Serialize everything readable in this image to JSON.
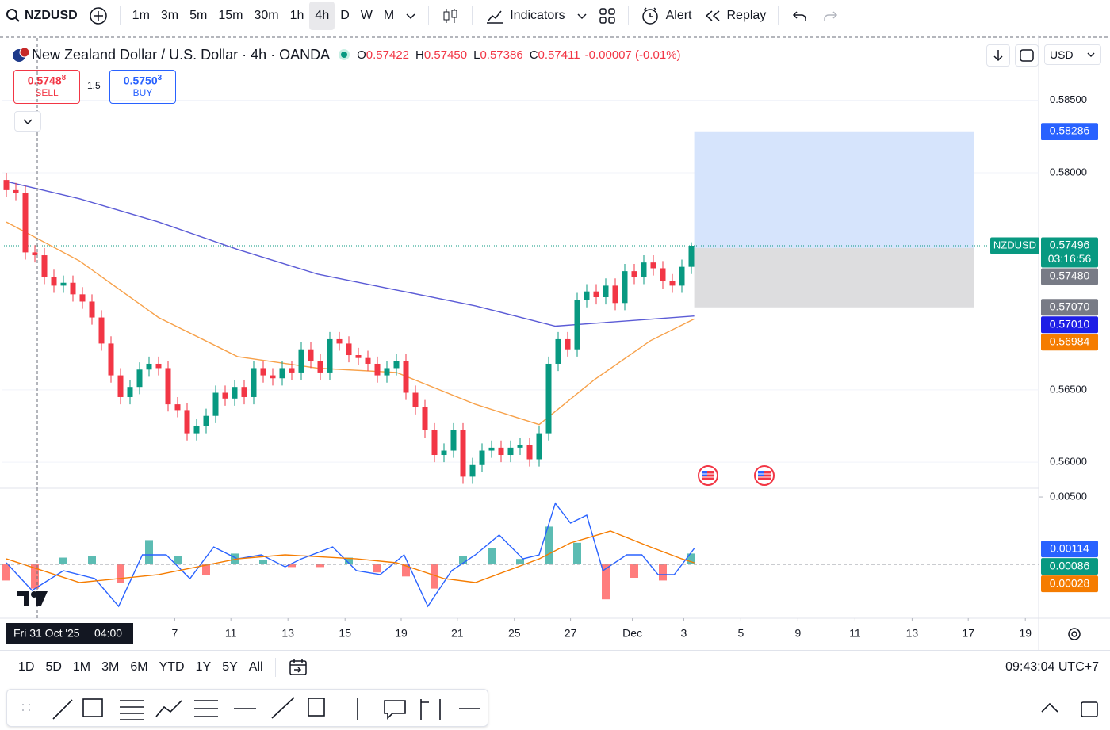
{
  "toolbar": {
    "symbol": "NZDUSD",
    "intervals": [
      "1m",
      "3m",
      "5m",
      "15m",
      "30m",
      "1h",
      "4h",
      "D",
      "W",
      "M"
    ],
    "active_interval": "4h",
    "indicators": "Indicators",
    "alert": "Alert",
    "replay": "Replay"
  },
  "legend": {
    "title": "New Zealand Dollar / U.S. Dollar · 4h · OANDA",
    "ohlc": [
      {
        "key": "O",
        "value": 0.57422
      },
      {
        "key": "H",
        "value": 0.5745,
        "label": "0.57450"
      },
      {
        "key": "L",
        "value": 0.57386
      },
      {
        "key": "C",
        "value": 0.57411
      }
    ],
    "change": "-0.00007 (-0.01%)"
  },
  "trade": {
    "sell_price": "0.5748",
    "sell_pip": "8",
    "sell_label": "SELL",
    "spread": "1.5",
    "buy_price": "0.5750",
    "buy_pip": "3",
    "buy_label": "BUY"
  },
  "currency": "USD",
  "crosshair": {
    "date": "Fri 31 Oct '25",
    "time": "04:00"
  },
  "ranges": [
    "1D",
    "5D",
    "1M",
    "3M",
    "6M",
    "YTD",
    "1Y",
    "5Y",
    "All"
  ],
  "clock": "09:43:04 UTC+7",
  "chart_data": {
    "type": "candlestick",
    "ylim": [
      0.5582,
      0.5892
    ],
    "yticks": [
      {
        "value": 0.585,
        "label": "0.58500"
      },
      {
        "value": 0.58,
        "label": "0.58000"
      },
      {
        "value": 0.565,
        "label": "0.56500"
      },
      {
        "value": 0.56,
        "label": "0.56000"
      }
    ],
    "xlim": [
      -0.5,
      108.5
    ],
    "xticks": [
      {
        "value": 17.7,
        "label": "7"
      },
      {
        "value": 23.6,
        "label": "11"
      },
      {
        "value": 29.6,
        "label": "13"
      },
      {
        "value": 35.6,
        "label": "15"
      },
      {
        "value": 41.5,
        "label": "19"
      },
      {
        "value": 47.4,
        "label": "21"
      },
      {
        "value": 53.4,
        "label": "25"
      },
      {
        "value": 59.3,
        "label": "27"
      },
      {
        "value": 65.8,
        "label": "Dec"
      },
      {
        "value": 71.2,
        "label": "3"
      },
      {
        "value": 77.2,
        "label": "5"
      },
      {
        "value": 83.2,
        "label": "9"
      },
      {
        "value": 89.2,
        "label": "11"
      },
      {
        "value": 95.2,
        "label": "13"
      },
      {
        "value": 101.1,
        "label": "17"
      },
      {
        "value": 107.1,
        "label": "19"
      }
    ],
    "up_color": "#089981",
    "down_color": "#f23645",
    "open": [
      0.5795,
      0.5788,
      0.5786,
      0.5745,
      0.5743,
      0.5728,
      0.5722,
      0.5724,
      0.5716,
      0.5711,
      0.57,
      0.5682,
      0.566,
      0.5645,
      0.5652,
      0.5664,
      0.5668,
      0.5665,
      0.564,
      0.5636,
      0.562,
      0.5625,
      0.5632,
      0.5648,
      0.5644,
      0.5652,
      0.5645,
      0.5665,
      0.566,
      0.5658,
      0.5665,
      0.5662,
      0.5678,
      0.567,
      0.5662,
      0.5685,
      0.5682,
      0.5674,
      0.5672,
      0.5668,
      0.566,
      0.5665,
      0.567,
      0.5648,
      0.5638,
      0.5622,
      0.5605,
      0.5608,
      0.5622,
      0.559,
      0.5598,
      0.5608,
      0.561,
      0.5605,
      0.561,
      0.5612,
      0.5602,
      0.562,
      0.5668,
      0.5685,
      0.5678,
      0.5712,
      0.5718,
      0.5714,
      0.5722,
      0.571,
      0.5732,
      0.5728,
      0.5738,
      0.5734,
      0.5725,
      0.5722,
      0.5735
    ],
    "high": [
      0.58,
      0.5793,
      0.5791,
      0.575,
      0.5748,
      0.5733,
      0.5729,
      0.5729,
      0.5721,
      0.5716,
      0.5705,
      0.5687,
      0.5665,
      0.5657,
      0.5669,
      0.5673,
      0.5673,
      0.567,
      0.5645,
      0.5641,
      0.563,
      0.5637,
      0.5653,
      0.5653,
      0.5657,
      0.5657,
      0.567,
      0.567,
      0.5665,
      0.567,
      0.567,
      0.5683,
      0.5683,
      0.5675,
      0.569,
      0.569,
      0.5687,
      0.5679,
      0.5677,
      0.5673,
      0.567,
      0.5675,
      0.5675,
      0.5653,
      0.5643,
      0.5627,
      0.5613,
      0.5627,
      0.5627,
      0.5603,
      0.5613,
      0.5615,
      0.5615,
      0.5615,
      0.5617,
      0.5617,
      0.5625,
      0.5673,
      0.569,
      0.569,
      0.5717,
      0.5723,
      0.5723,
      0.5727,
      0.5727,
      0.5737,
      0.5737,
      0.5743,
      0.5743,
      0.5739,
      0.573,
      0.574,
      0.5752
    ],
    "low": [
      0.5783,
      0.5781,
      0.574,
      0.5738,
      0.5723,
      0.5717,
      0.5717,
      0.5711,
      0.5706,
      0.5695,
      0.5677,
      0.5655,
      0.564,
      0.564,
      0.5647,
      0.5659,
      0.566,
      0.5635,
      0.5631,
      0.5615,
      0.5615,
      0.562,
      0.5627,
      0.5639,
      0.5639,
      0.564,
      0.564,
      0.5655,
      0.5653,
      0.5653,
      0.5657,
      0.5657,
      0.5665,
      0.5657,
      0.5657,
      0.5677,
      0.5669,
      0.5667,
      0.5663,
      0.5655,
      0.5655,
      0.566,
      0.5643,
      0.5633,
      0.5617,
      0.56,
      0.56,
      0.5603,
      0.5585,
      0.5585,
      0.5593,
      0.5603,
      0.56,
      0.56,
      0.5605,
      0.5597,
      0.5597,
      0.5615,
      0.5663,
      0.5673,
      0.5673,
      0.5707,
      0.5709,
      0.5709,
      0.5705,
      0.5705,
      0.5723,
      0.5723,
      0.5729,
      0.572,
      0.5717,
      0.5717,
      0.573
    ],
    "close": [
      0.5788,
      0.5786,
      0.5745,
      0.5743,
      0.5728,
      0.5722,
      0.5724,
      0.5716,
      0.5711,
      0.57,
      0.5682,
      0.566,
      0.5645,
      0.5652,
      0.5664,
      0.5668,
      0.5665,
      0.564,
      0.5636,
      0.562,
      0.5625,
      0.5632,
      0.5648,
      0.5644,
      0.5652,
      0.5645,
      0.5665,
      0.566,
      0.5658,
      0.5665,
      0.5662,
      0.5678,
      0.567,
      0.5662,
      0.5685,
      0.5682,
      0.5674,
      0.5672,
      0.5668,
      0.566,
      0.5665,
      0.567,
      0.5648,
      0.5638,
      0.5622,
      0.5605,
      0.5608,
      0.5622,
      0.559,
      0.5598,
      0.5608,
      0.561,
      0.5605,
      0.561,
      0.5612,
      0.5602,
      0.562,
      0.5668,
      0.5685,
      0.5678,
      0.5712,
      0.5718,
      0.5714,
      0.5722,
      0.571,
      0.5732,
      0.5728,
      0.5738,
      0.5734,
      0.5725,
      0.5722,
      0.5735,
      0.57496
    ],
    "lines": [
      {
        "color": "#5b5bd6",
        "x": [
          0,
          7.7,
          16,
          24.3,
          32.7,
          41,
          49.3,
          57.7,
          66,
          72.3
        ],
        "values": [
          0.5794,
          0.5782,
          0.5766,
          0.5747,
          0.573,
          0.5719,
          0.5708,
          0.5694,
          0.5698,
          0.5701
        ]
      },
      {
        "color": "#f7a14a",
        "x": [
          0,
          7.7,
          16,
          24.3,
          32.7,
          41,
          49.3,
          56,
          61.8,
          67.7,
          72.3
        ],
        "values": [
          0.5766,
          0.5739,
          0.57,
          0.5673,
          0.5665,
          0.5662,
          0.564,
          0.5626,
          0.5657,
          0.5684,
          0.5699
        ]
      }
    ],
    "position": {
      "x": [
        72.3,
        101.7
      ],
      "target_color": "#d6e4fc",
      "stop_color": "#dddddf"
    },
    "price_labels": [
      {
        "value": 0.58286,
        "color": "#2962ff"
      },
      {
        "value": 0.57496,
        "color": "#089981",
        "name": "NZDUSD",
        "countdown": "03:16:56"
      },
      {
        "value": 0.5748,
        "label": "0.57480",
        "color": "#787b86"
      },
      {
        "value": 0.5707,
        "label": "0.57070",
        "color": "#787b86"
      },
      {
        "value": 0.5701,
        "label": "0.57010",
        "color": "#1e1ee6"
      },
      {
        "value": 0.56984,
        "color": "#f57c00"
      }
    ],
    "macd": {
      "ylim": [
        -0.004,
        0.00565
      ],
      "yticks": [
        {
          "value": 0.005,
          "label": "0.00500"
        }
      ],
      "histogram": {
        "up_color": "#26a69a",
        "down_color": "#ff5252",
        "x": [
          0,
          3,
          6,
          9,
          12,
          15,
          18,
          21,
          24,
          27,
          30,
          33,
          36,
          39,
          42,
          45,
          48,
          51,
          54,
          57,
          60,
          63,
          66,
          69,
          72
        ],
        "values": [
          -0.0012,
          -0.0018,
          0.0005,
          0.0006,
          -0.0014,
          0.0018,
          0.0006,
          -0.0008,
          0.0008,
          0.0003,
          -0.0002,
          -0.0002,
          0.0005,
          -0.0006,
          -0.0009,
          -0.0018,
          0.0006,
          0.0012,
          0.0004,
          0.0028,
          0.0016,
          -0.0026,
          -0.001,
          -0.0012,
          0.0008
        ]
      },
      "lines": [
        {
          "color": "#2962ff",
          "x": [
            0,
            2.7,
            6,
            9.3,
            11.8,
            14.3,
            16.8,
            19.3,
            21.8,
            24.3,
            26.8,
            29.3,
            31,
            34.3,
            36.8,
            39.3,
            41.8,
            44.3,
            46.8,
            49.3,
            51.8,
            54.3,
            56,
            57.7,
            59.3,
            61,
            62.7,
            65.2,
            66.8,
            68.5,
            70.2,
            72.3
          ],
          "values": [
            0.00012,
            -0.00194,
            -0.00047,
            -0.00106,
            -0.00312,
            0.00071,
            0.00071,
            -0.00106,
            0.00129,
            0.00041,
            0.00071,
            -0.00018,
            0.00041,
            0.00129,
            -0.00047,
            -0.00076,
            0.00071,
            -0.00312,
            -0.00047,
            0.00071,
            0.00218,
            0.00041,
            0.00071,
            0.00453,
            0.00306,
            0.00365,
            -0.00047,
            0.00071,
            0.00071,
            -0.00076,
            -0.00076,
            0.00118
          ]
        },
        {
          "color": "#f57c00",
          "x": [
            0,
            7.7,
            16,
            24.3,
            29.3,
            36.8,
            41,
            46,
            49.3,
            56,
            59.3,
            63.5,
            67.7,
            71,
            72.3
          ],
          "values": [
            0.00041,
            -0.00135,
            -0.00076,
            0.00041,
            0.00071,
            0.00041,
            0.00012,
            -0.00106,
            -0.00135,
            0.00041,
            0.00159,
            0.00247,
            0.00129,
            0.00041,
            0.00012
          ]
        }
      ],
      "price_labels": [
        {
          "value": 0.00114,
          "color": "#2962ff"
        },
        {
          "value": 0.00086,
          "color": "#089981"
        },
        {
          "value": 0.00028,
          "color": "#f57c00"
        }
      ]
    }
  }
}
